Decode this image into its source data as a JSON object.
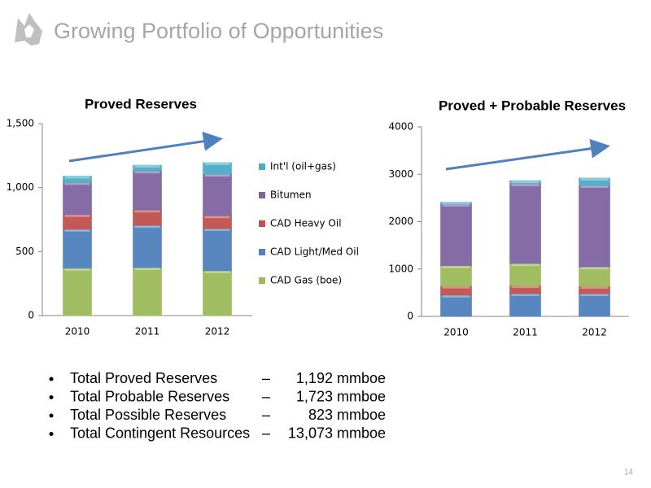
{
  "header": {
    "title": "Growing Portfolio of Opportunities"
  },
  "chart_data": [
    {
      "type": "stacked-bar",
      "title": "Proved Reserves",
      "categories": [
        "2010",
        "2011",
        "2012"
      ],
      "series": [
        {
          "name": "CAD Gas (boe)",
          "color": "#9bbb59",
          "values": [
            370,
            375,
            350
          ]
        },
        {
          "name": "CAD Light/Med Oil",
          "color": "#4f81bd",
          "values": [
            305,
            330,
            330
          ]
        },
        {
          "name": "CAD Heavy Oil",
          "color": "#c0504d",
          "values": [
            115,
            120,
            100
          ]
        },
        {
          "name": "Bitumen",
          "color": "#8064a2",
          "values": [
            250,
            305,
            325
          ]
        },
        {
          "name": "Int'l (oil+gas)",
          "color": "#4bacc6",
          "values": [
            50,
            45,
            90
          ]
        }
      ],
      "ylim": [
        0,
        1500
      ],
      "yticks": [
        0,
        500,
        {
          "value": 1000,
          "label": "1,000"
        },
        {
          "value": 1500,
          "label": "1,500"
        }
      ],
      "legend": "right"
    },
    {
      "type": "stacked-bar",
      "title": "Proved + Probable Reserves",
      "categories": [
        "2010",
        "2011",
        "2012"
      ],
      "series": [
        {
          "color": "#4f81bd",
          "values": [
            450,
            480,
            480
          ]
        },
        {
          "color": "#c0504d",
          "values": [
            190,
            170,
            155
          ]
        },
        {
          "color": "#9bbb59",
          "values": [
            430,
            465,
            410
          ]
        },
        {
          "color": "#8064a2",
          "values": [
            1300,
            1685,
            1720
          ]
        },
        {
          "color": "#4bacc6",
          "values": [
            40,
            65,
            155
          ]
        }
      ],
      "ylim": [
        0,
        4000
      ],
      "yticks": [
        0,
        1000,
        2000,
        3000,
        4000
      ]
    }
  ],
  "bullets": [
    {
      "label": "Total Proved Reserves",
      "separator": "–",
      "value": "1,192 mmboe"
    },
    {
      "label": "Total Probable Reserves",
      "separator": "–",
      "value": "1,723 mmboe"
    },
    {
      "label": "Total Possible Reserves",
      "separator": "–",
      "value": "823 mmboe"
    },
    {
      "label": "Total Contingent Resources",
      "separator": "–",
      "value": "13,073 mmboe"
    }
  ],
  "page_number": "14"
}
